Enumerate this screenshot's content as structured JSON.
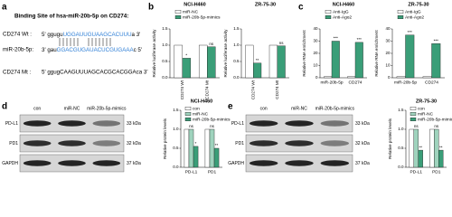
{
  "panel_labels": [
    "a",
    "b",
    "c",
    "d",
    "e"
  ],
  "binding_site": {
    "title": "Binding Site of hsa-miR-20b-5p on CD274:",
    "rows": [
      {
        "label": "CD274 Wt :",
        "sequence": [
          "5' ggugu",
          "UGGAUUGUAAGCACUUU",
          "a 3'"
        ]
      },
      {
        "label": "miR-20b-5p:",
        "sequence": [
          "3' gau",
          "GGACGUGAUACUCGUGAAA",
          "c 5'"
        ]
      },
      {
        "label": "CD274 Mt :",
        "sequence": [
          "5' ggugCAAGUUUAGCACGCACGGAca 3'"
        ]
      }
    ]
  },
  "blots": [
    {
      "lanes": [
        "con",
        "miR-NC",
        "miR-20b-5p-mimics"
      ],
      "rows": [
        {
          "protein": "PD-L1",
          "size": "33 kDa"
        },
        {
          "protein": "PD1",
          "size": "32 kDa"
        },
        {
          "protein": "GAPDH",
          "size": "37 kDa"
        }
      ]
    },
    {
      "lanes": [
        "con",
        "miR-NC",
        "miR-20b-5p-mimics"
      ],
      "rows": [
        {
          "protein": "PD-L1",
          "size": "33 kDa"
        },
        {
          "protein": "PD1",
          "size": "32 kDa"
        },
        {
          "protein": "GAPDH",
          "size": "37 kDa"
        }
      ]
    }
  ],
  "chart_data": [
    {
      "type": "bar",
      "title": "NCI-H460",
      "y_label": "Relative luciferase activity",
      "categories": [
        "CD274 Wt",
        "CD274 Mt"
      ],
      "series": [
        {
          "name": "miR-NC",
          "color": "#ffffff",
          "values": [
            1.0,
            1.0
          ]
        },
        {
          "name": "miR-20b-5p-mimics",
          "color": "#3a9e78",
          "values": [
            0.6,
            0.95
          ],
          "annotations": [
            "*",
            "ns"
          ]
        }
      ],
      "ylim": [
        0,
        1.5
      ],
      "yticks": [
        {
          "value": 0,
          "label": "0.0"
        },
        {
          "value": 0.5,
          "label": "0.5"
        },
        {
          "value": 1,
          "label": "1.0"
        },
        {
          "value": 1.5,
          "label": "1.5"
        }
      ]
    },
    {
      "type": "bar",
      "title": "ZR-75-30",
      "y_label": "Relative luciferase activity",
      "categories": [
        "CD274 Wt",
        "CD274 Mt"
      ],
      "series": [
        {
          "color": "#ffffff",
          "values": [
            1.0,
            1.0
          ]
        },
        {
          "color": "#3a9e78",
          "values": [
            0.45,
            0.98
          ],
          "annotations": [
            "**",
            "ns"
          ]
        }
      ],
      "ylim": [
        0,
        1.5
      ],
      "yticks": [
        {
          "value": 0,
          "label": "0.0"
        },
        {
          "value": 0.5,
          "label": "0.5"
        },
        {
          "value": 1,
          "label": "1.0"
        },
        {
          "value": 1.5,
          "label": "1.5"
        }
      ]
    },
    {
      "type": "bar",
      "title": "NCI-H460",
      "y_label": "Relative RNA enrichment",
      "categories": [
        "miR-20b-5p",
        "CD274"
      ],
      "series": [
        {
          "name": "Anti-IgG",
          "color": "#ffffff",
          "values": [
            1,
            1
          ]
        },
        {
          "name": "Anti-Ago2",
          "color": "#3a9e78",
          "values": [
            30,
            29
          ],
          "annotations": [
            "***",
            "***"
          ]
        }
      ],
      "ylim": [
        0,
        40
      ],
      "yticks": [
        0,
        10,
        20,
        30,
        40
      ]
    },
    {
      "type": "bar",
      "title": "ZR-75-30",
      "y_label": "Relative RNA enrichment",
      "categories": [
        "miR-20b-5p",
        "CD274"
      ],
      "series": [
        {
          "name": "Anti-IgG",
          "color": "#ffffff",
          "values": [
            1,
            1
          ]
        },
        {
          "name": "Anti-Ago2",
          "color": "#3a9e78",
          "values": [
            35,
            28
          ],
          "annotations": [
            "***",
            "***"
          ]
        }
      ],
      "ylim": [
        0,
        40
      ],
      "yticks": [
        0,
        10,
        20,
        30,
        40
      ]
    },
    {
      "type": "bar",
      "title": "NCI-H460",
      "y_label": "Relative protein levels",
      "categories": [
        "PD-L1",
        "PD1"
      ],
      "series": [
        {
          "name": "con",
          "color": "#ffffff",
          "values": [
            1.0,
            1.0
          ]
        },
        {
          "name": "miR-NC",
          "color": "#9fd3bd",
          "values": [
            1.0,
            1.0
          ],
          "annotations": [
            "ns",
            "ns"
          ]
        },
        {
          "name": "miR-20b-5p-mimics",
          "color": "#3a9e78",
          "values": [
            0.55,
            0.5
          ],
          "annotations": [
            "*",
            "**"
          ]
        }
      ],
      "ylim": [
        0,
        1.5
      ],
      "yticks": [
        {
          "value": 0,
          "label": "0.0"
        },
        {
          "value": 0.5,
          "label": "0.5"
        },
        {
          "value": 1,
          "label": "1.0"
        },
        {
          "value": 1.5,
          "label": "1.5"
        }
      ]
    },
    {
      "type": "bar",
      "title": "ZR-75-30",
      "y_label": "Relative protein levels",
      "categories": [
        "PD-L1",
        "PD1"
      ],
      "series": [
        {
          "name": "con",
          "color": "#ffffff",
          "values": [
            1.0,
            1.0
          ]
        },
        {
          "name": "miR-NC",
          "color": "#9fd3bd",
          "values": [
            1.0,
            1.0
          ],
          "annotations": [
            "ns",
            "ns"
          ]
        },
        {
          "name": "miR-20b-5p-mimics",
          "color": "#3a9e78",
          "values": [
            0.45,
            0.45
          ],
          "annotations": [
            "**",
            "**"
          ]
        }
      ],
      "ylim": [
        0,
        1.5
      ],
      "yticks": [
        {
          "value": 0,
          "label": "0.0"
        },
        {
          "value": 0.5,
          "label": "0.5"
        },
        {
          "value": 1,
          "label": "1.0"
        },
        {
          "value": 1.5,
          "label": "1.5"
        }
      ]
    }
  ]
}
